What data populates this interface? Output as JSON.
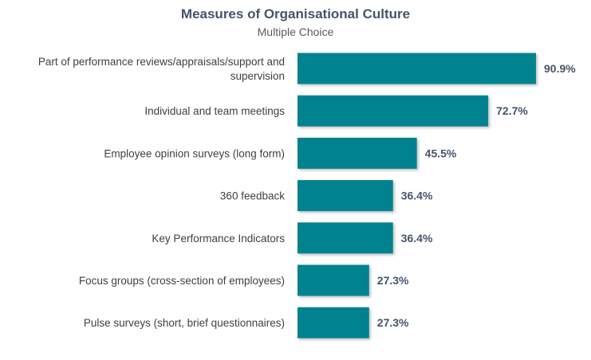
{
  "chart_data": {
    "type": "bar",
    "orientation": "horizontal",
    "title": "Measures of Organisational Culture",
    "subtitle": "Multiple Choice",
    "categories": [
      [
        "Part of performance reviews/appraisals/support and",
        "supervision"
      ],
      [
        "Individual and team meetings"
      ],
      [
        "Employee opinion surveys (long form)"
      ],
      [
        "360 feedback"
      ],
      [
        "Key Performance Indicators"
      ],
      [
        "Focus groups (cross-section of employees)"
      ],
      [
        "Pulse surveys (short, brief questionnaires)"
      ]
    ],
    "values": [
      90.9,
      72.7,
      45.5,
      36.4,
      36.4,
      27.3,
      27.3
    ],
    "value_labels": [
      "90.9%",
      "72.7%",
      "45.5%",
      "36.4%",
      "36.4%",
      "27.3%",
      "27.3%"
    ],
    "xlim": [
      0,
      100
    ],
    "grid": false,
    "legend": "none",
    "bar_color": "#00838f"
  }
}
